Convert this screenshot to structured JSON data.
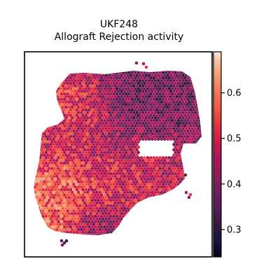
{
  "title": {
    "line1": "UKF248",
    "line2": "Allograft Rejection activity"
  },
  "chart_data": {
    "type": "heatmap",
    "subtype": "spatial-spot-map",
    "title": "UKF248\nAllograft Rejection activity",
    "xlabel": "",
    "ylabel": "",
    "grid": false,
    "axes_ticks": false,
    "colorbar": {
      "colormap": "rocket",
      "vmin": 0.24,
      "vmax": 0.69,
      "ticks": [
        0.3,
        0.4,
        0.5,
        0.6
      ],
      "tick_labels": [
        "0.3",
        "0.4",
        "0.5",
        "0.6"
      ]
    },
    "palette": [
      "#03051a",
      "#1a1042",
      "#36193e",
      "#571d56",
      "#701f57",
      "#8e1d5b",
      "#ad1759",
      "#cb1b4f",
      "#e13342",
      "#ef5a41",
      "#f37651",
      "#f6a47c",
      "#f6c4a4",
      "#faebdd"
    ]
  }
}
